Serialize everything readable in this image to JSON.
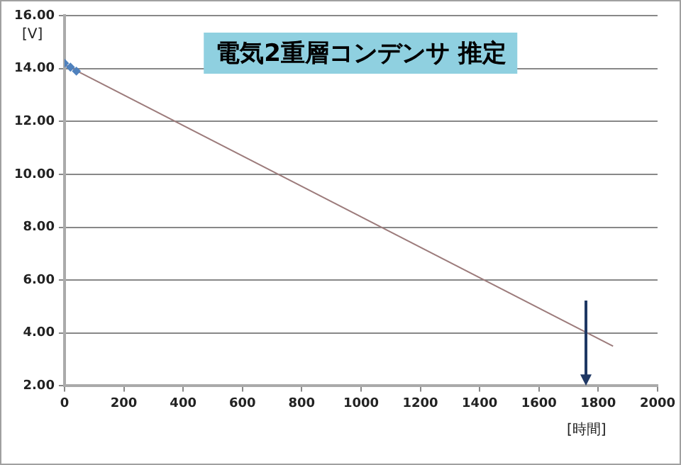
{
  "chart_data": {
    "type": "scatter",
    "title": "電気2重層コンデンサ  推定",
    "ylabel": "[V]",
    "xlabel": "[時間]",
    "xlim": [
      0,
      2000
    ],
    "xticks": [
      0,
      200,
      400,
      600,
      800,
      1000,
      1200,
      1400,
      1600,
      1800,
      2000
    ],
    "ylim": [
      2,
      16
    ],
    "yticks": [
      {
        "value": 2,
        "label": "2.00"
      },
      {
        "value": 4,
        "label": "4.00"
      },
      {
        "value": 6,
        "label": "6.00"
      },
      {
        "value": 8,
        "label": "8.00"
      },
      {
        "value": 10,
        "label": "10.00"
      },
      {
        "value": 12,
        "label": "12.00"
      },
      {
        "value": 14,
        "label": "14.00"
      },
      {
        "value": 16,
        "label": "16.00"
      }
    ],
    "grid": "y",
    "legend": false,
    "series": [
      {
        "type": "scatter",
        "marker": "diamond",
        "color": "#4f81bd",
        "x": [
          0,
          20,
          40
        ],
        "values": [
          14.2,
          14.05,
          13.9
        ]
      },
      {
        "type": "line",
        "marker": "none",
        "color": "#9c7b7b",
        "x": [
          0,
          1850
        ],
        "values": [
          14.15,
          3.5
        ]
      }
    ]
  }
}
